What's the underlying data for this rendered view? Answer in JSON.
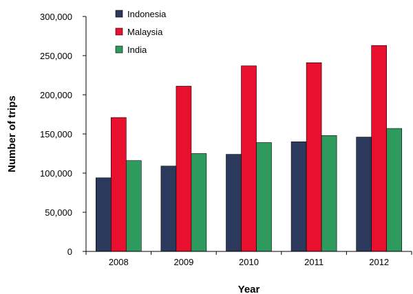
{
  "chart_data": {
    "type": "bar",
    "categories": [
      "2008",
      "2009",
      "2010",
      "2011",
      "2012"
    ],
    "series": [
      {
        "name": "Indonesia",
        "color": "#2b3a5c",
        "values": [
          94000,
          109000,
          124000,
          140000,
          146000
        ]
      },
      {
        "name": "Malaysia",
        "color": "#e8102e",
        "values": [
          171000,
          211000,
          237000,
          241000,
          263000
        ]
      },
      {
        "name": "India",
        "color": "#2f9a5e",
        "values": [
          116000,
          125000,
          139000,
          148000,
          157000
        ]
      }
    ],
    "xlabel": "Year",
    "ylabel": "Number of trips",
    "ylim": [
      0,
      300000
    ],
    "yticks": [
      "0",
      "50,000",
      "100,000",
      "150,000",
      "200,000",
      "250,000",
      "300,000"
    ],
    "grid": false,
    "legend_position": "top-left"
  }
}
